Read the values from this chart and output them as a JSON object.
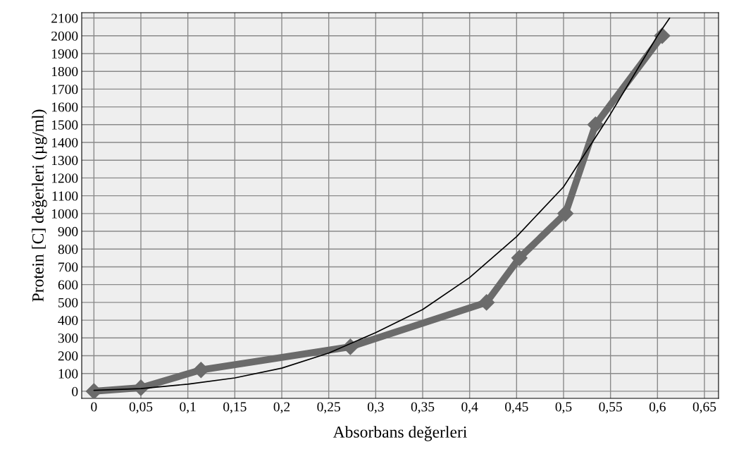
{
  "chart_data": {
    "type": "line",
    "xlabel": "Absorbans değerleri",
    "ylabel": "Protein [C] değerleri (µg/ml)",
    "series": [
      {
        "color": "#6b6b6b",
        "marker": "diamond",
        "x": [
          0,
          0.05,
          0.114,
          0.273,
          0.418,
          0.453,
          0.502,
          0.534,
          0.605
        ],
        "values": [
          0,
          20,
          120,
          250,
          500,
          750,
          1000,
          1500,
          2000
        ]
      },
      {
        "color": "#000000",
        "marker": "none",
        "x": [
          0,
          0.05,
          0.1,
          0.15,
          0.2,
          0.25,
          0.3,
          0.35,
          0.4,
          0.45,
          0.5,
          0.55,
          0.6,
          0.613
        ],
        "values": [
          5,
          15,
          40,
          75,
          130,
          215,
          330,
          460,
          640,
          870,
          1150,
          1560,
          2000,
          2100
        ]
      }
    ],
    "xlim": [
      -0.013,
      0.665
    ],
    "ylim": [
      -40,
      2130
    ],
    "xticks": [
      0,
      {
        "value": 0.05,
        "label": "0,05"
      },
      {
        "value": 0.1,
        "label": "0,1"
      },
      {
        "value": 0.15,
        "label": "0,15"
      },
      {
        "value": 0.2,
        "label": "0,2"
      },
      {
        "value": 0.25,
        "label": "0,25"
      },
      {
        "value": 0.3,
        "label": "0,3"
      },
      {
        "value": 0.35,
        "label": "0,35"
      },
      {
        "value": 0.4,
        "label": "0,4"
      },
      {
        "value": 0.45,
        "label": "0,45"
      },
      {
        "value": 0.5,
        "label": "0,5"
      },
      {
        "value": 0.55,
        "label": "0,55"
      },
      {
        "value": 0.6,
        "label": "0,6"
      },
      {
        "value": 0.65,
        "label": "0,65"
      }
    ],
    "yticks": [
      0,
      100,
      200,
      300,
      400,
      500,
      600,
      700,
      800,
      900,
      1000,
      1100,
      1200,
      1300,
      1400,
      1500,
      1600,
      1700,
      1800,
      1900,
      2000,
      2100
    ],
    "grid": true,
    "legend": false
  }
}
